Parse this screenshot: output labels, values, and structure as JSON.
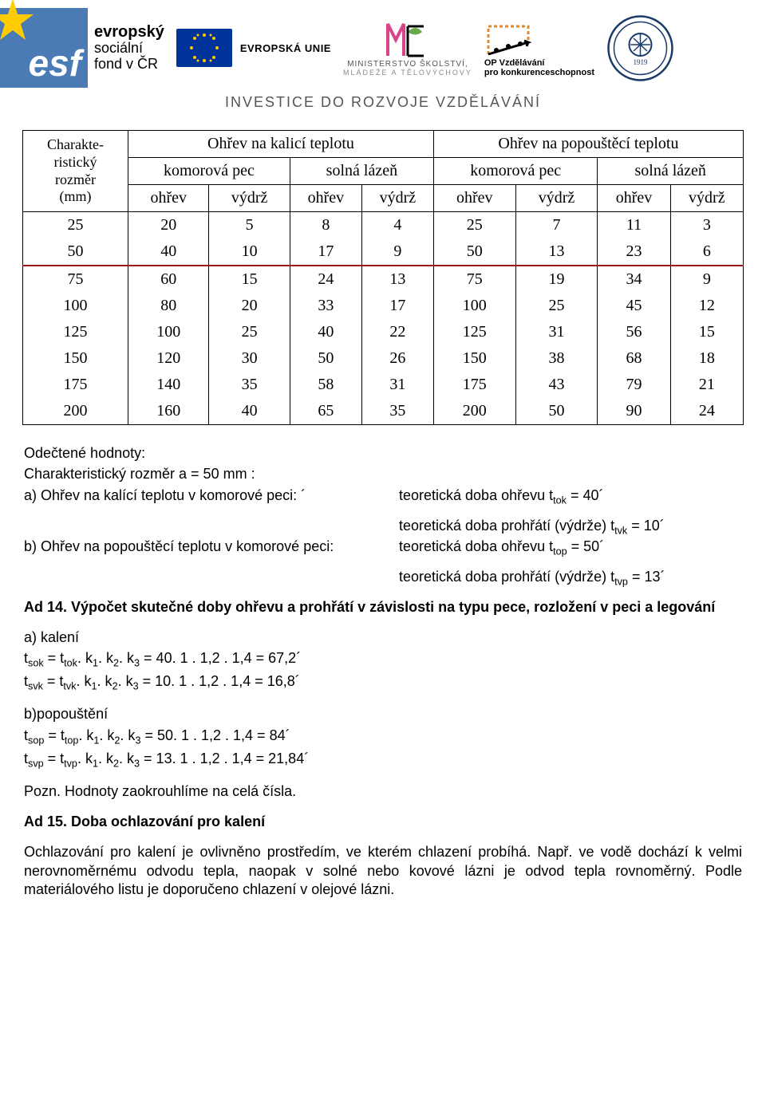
{
  "logos": {
    "esf_big": "esf",
    "esf_line1": "evropský",
    "esf_line2": "sociální",
    "esf_line3": "fond v ČR",
    "eu_label": "EVROPSKÁ UNIE",
    "msmt_line1": "MINISTERSTVO ŠKOLSTVÍ,",
    "msmt_line2": "MLÁDEŽE A TĚLOVÝCHOVY",
    "op_line1": "OP Vzdělávání",
    "op_line2": "pro konkurenceschopnost"
  },
  "invest_line": "INVESTICE DO ROZVOJE VZDĚLÁVÁNÍ",
  "table": {
    "corner_line1": "Charakte-",
    "corner_line2": "ristický",
    "corner_line3": "rozměr",
    "corner_line4": "(mm)",
    "group1": "Ohřev na kalicí teplotu",
    "group2": "Ohřev na popouštěcí teplotu",
    "sub1": "komorová pec",
    "sub2": "solná lázeň",
    "sub3": "komorová pec",
    "sub4": "solná lázeň",
    "h_ohrev": "ohřev",
    "h_vydrz": "výdrž",
    "rows": [
      {
        "id": 0,
        "c0": "25",
        "c1": "20",
        "c2": "5",
        "c3": "8",
        "c4": "4",
        "c5": "25",
        "c6": "7",
        "c7": "11",
        "c8": "3",
        "underline": false
      },
      {
        "id": 1,
        "c0": "50",
        "c1": "40",
        "c2": "10",
        "c3": "17",
        "c4": "9",
        "c5": "50",
        "c6": "13",
        "c7": "23",
        "c8": "6",
        "underline": true
      },
      {
        "id": 2,
        "c0": "75",
        "c1": "60",
        "c2": "15",
        "c3": "24",
        "c4": "13",
        "c5": "75",
        "c6": "19",
        "c7": "34",
        "c8": "9",
        "underline": false
      },
      {
        "id": 3,
        "c0": "100",
        "c1": "80",
        "c2": "20",
        "c3": "33",
        "c4": "17",
        "c5": "100",
        "c6": "25",
        "c7": "45",
        "c8": "12",
        "underline": false
      },
      {
        "id": 4,
        "c0": "125",
        "c1": "100",
        "c2": "25",
        "c3": "40",
        "c4": "22",
        "c5": "125",
        "c6": "31",
        "c7": "56",
        "c8": "15",
        "underline": false
      },
      {
        "id": 5,
        "c0": "150",
        "c1": "120",
        "c2": "30",
        "c3": "50",
        "c4": "26",
        "c5": "150",
        "c6": "38",
        "c7": "68",
        "c8": "18",
        "underline": false
      },
      {
        "id": 6,
        "c0": "175",
        "c1": "140",
        "c2": "35",
        "c3": "58",
        "c4": "31",
        "c5": "175",
        "c6": "43",
        "c7": "79",
        "c8": "21",
        "underline": false
      },
      {
        "id": 7,
        "c0": "200",
        "c1": "160",
        "c2": "40",
        "c3": "65",
        "c4": "35",
        "c5": "200",
        "c6": "50",
        "c7": "90",
        "c8": "24",
        "underline": false
      }
    ]
  },
  "text": {
    "odectene": "Odečtené hodnoty:",
    "charakt": "Charakteristický rozměr a = 50 mm :",
    "a_line_left": "a)  Ohřev na kalící teplotu v komorové peci: ´",
    "a_line_right": "teoretická doba ohřevu t",
    "a_line_sub": "tok",
    "a_line_eq": " = 40´",
    "gap_right1": "teoretická doba prohřátí (výdrže) t",
    "gap_sub1": "tvk",
    "gap_eq1": " = 10´",
    "b_line_left": "b)  Ohřev na popouštěcí teplotu v komorové peci:",
    "b_line_right": "teoretická doba ohřevu t",
    "b_line_sub": "top",
    "b_line_eq": " = 50´",
    "gap_right2": "teoretická doba prohřátí (výdrže) t",
    "gap_sub2": "tvp",
    "gap_eq2": " = 13´",
    "ad14": "Ad 14. Výpočet skutečné doby ohřevu a prohřátí v závislosti na typu pece, rozložení v peci a legování",
    "kaleni_h": "a)   kalení",
    "tsok_l": "t",
    "tsok_sub": "sok",
    "tsok_mid": " = t",
    "tsok_sub2": "tok",
    "tsok_rest": ". k",
    "tsok_k1": "1",
    "tsok_k2": "2",
    "tsok_k3": "3",
    "tsok_eq": " = 40. 1 . 1,2 . 1,4 = 67,2´",
    "tsvk_l": "t",
    "tsvk_sub": "svk",
    "tsvk_mid": " = t",
    "tsvk_sub2": "tvk",
    "tsvk_eq": " =  10. 1 . 1,2 . 1,4 = 16,8´",
    "popo_h": "b)popouštění",
    "tsop_l": "t",
    "tsop_sub": "sop",
    "tsop_mid": " = t",
    "tsop_sub2": "top",
    "tsop_eq": " = 50. 1 . 1,2 . 1,4 = 84´",
    "tsvp_l": "t",
    "tsvp_sub": "svp",
    "tsvp_mid": " =  t",
    "tsvp_sub2": "tvp",
    "tsvp_eq": " =  13. 1 . 1,2 . 1,4 = 21,84´",
    "pozn": "Pozn. Hodnoty zaokrouhlíme na celá čísla.",
    "ad15": "Ad 15. Doba ochlazování pro kalení",
    "para": "Ochlazování pro kalení je ovlivněno prostředím, ve kterém chlazení probíhá. Např. ve vodě dochází k velmi nerovnoměrnému odvodu tepla, naopak v solné nebo kovové lázni je odvod tepla rovnoměrný. Podle materiálového listu je doporučeno chlazení v olejové lázni."
  },
  "colors": {
    "brand_blue": "#4a7bb5",
    "eu_blue": "#003399",
    "eu_gold": "#ffcc00",
    "row_underline": "#9a1a1a",
    "msmt_pink": "#d9438b",
    "msmt_green": "#6aa84f",
    "op_orange": "#e08a2c",
    "seal_navy": "#1a3a6a"
  }
}
